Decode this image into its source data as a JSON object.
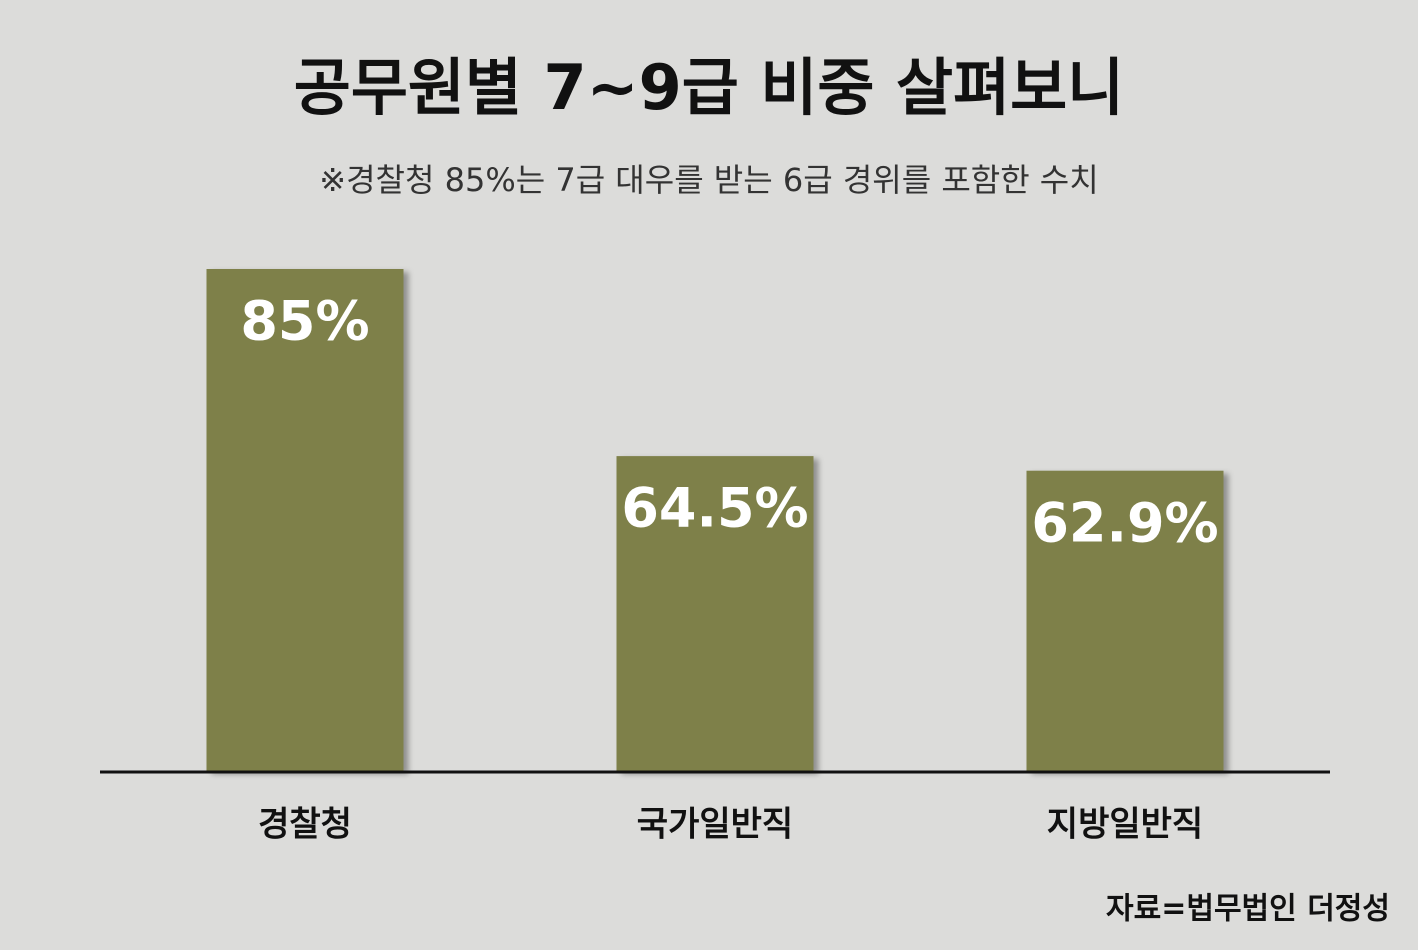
{
  "chart_data": {
    "type": "bar",
    "title": "공무원별 7~9급 비중 살펴보니",
    "subtitle": "※경찰청 85%는 7급 대우를 받는 6급 경위를 포함한 수치",
    "categories": [
      "경찰청",
      "국가일반직",
      "지방일반직"
    ],
    "values": [
      85,
      64.5,
      62.9
    ],
    "value_labels": [
      "85%",
      "64.5%",
      "62.9%"
    ],
    "color": "#7e8049",
    "ylim": [
      30,
      85
    ],
    "source": "자료=법무법인 더정성"
  }
}
